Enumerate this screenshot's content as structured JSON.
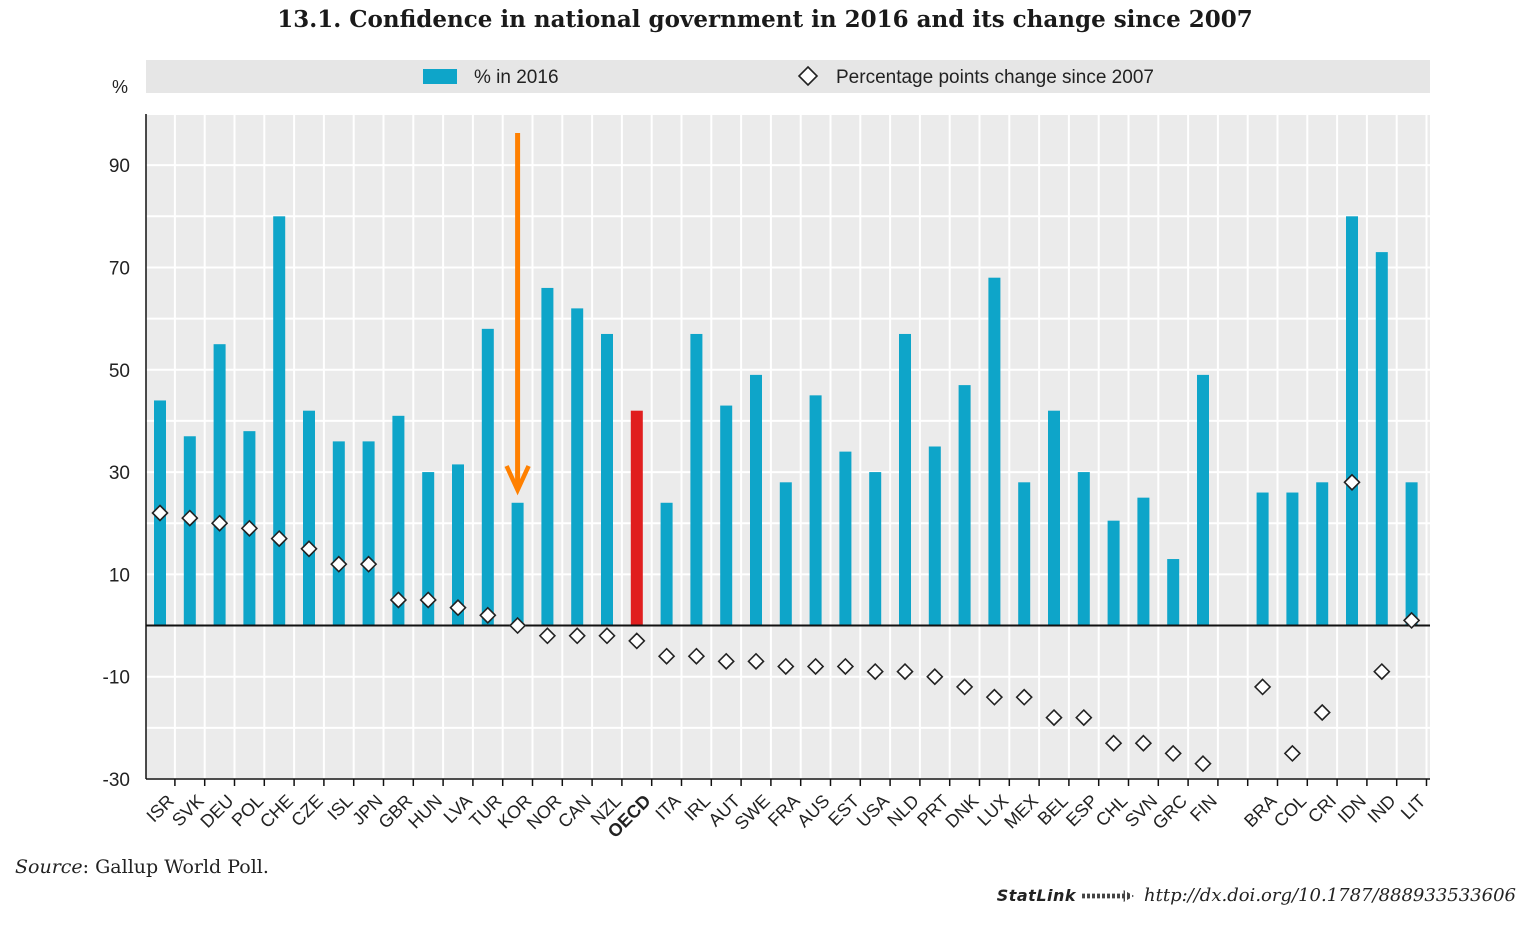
{
  "chart_data": {
    "type": "bar",
    "title": "13.1. Confidence in national government in 2016 and its change since 2007",
    "ylabel": "%",
    "ylim": [
      -30,
      100
    ],
    "yticks": [
      -30,
      -10,
      10,
      30,
      50,
      70,
      90
    ],
    "grid": true,
    "legend_position": "top",
    "categories": [
      "ISR",
      "SVK",
      "DEU",
      "POL",
      "CHE",
      "CZE",
      "ISL",
      "JPN",
      "GBR",
      "HUN",
      "LVA",
      "TUR",
      "KOR",
      "NOR",
      "CAN",
      "NZL",
      "OECD",
      "ITA",
      "IRL",
      "AUT",
      "SWE",
      "FRA",
      "AUS",
      "EST",
      "USA",
      "NLD",
      "PRT",
      "DNK",
      "LUX",
      "MEX",
      "BEL",
      "ESP",
      "CHL",
      "SVN",
      "GRC",
      "FIN",
      "BRA",
      "COL",
      "CRI",
      "IDN",
      "IND",
      "LIT"
    ],
    "highlight_category": "OECD",
    "arrow_annotation_category": "KOR",
    "series": [
      {
        "name": "% in 2016",
        "kind": "bar",
        "color": "#0ea5c9",
        "highlight_color": "#e01e1e",
        "values": [
          44,
          37,
          55,
          38,
          80,
          42,
          36,
          36,
          41,
          30,
          31.5,
          58,
          24,
          66,
          62,
          57,
          42,
          24,
          57,
          43,
          49,
          28,
          45,
          34,
          30,
          57,
          35,
          47,
          68,
          28,
          42,
          30,
          20.5,
          25,
          13,
          49,
          26,
          26,
          28,
          80,
          73,
          28
        ]
      },
      {
        "name": "Percentage points change since 2007",
        "kind": "marker",
        "marker": "diamond",
        "values": [
          22,
          21,
          20,
          19,
          17,
          15,
          12,
          12,
          5,
          5,
          3.5,
          2,
          0,
          -2,
          -2,
          -2,
          -3,
          -6,
          -6,
          -7,
          -7,
          -8,
          -8,
          -8,
          -9,
          -9,
          -10,
          -12,
          -14,
          -14,
          -18,
          -18,
          -23,
          -23,
          -25,
          -27,
          -12,
          -25,
          -17,
          28,
          -9,
          1
        ]
      }
    ]
  },
  "colors": {
    "plot_background": "#ebebeb",
    "legend_background": "#e6e6e6",
    "gridline": "#ffffff",
    "arrow": "#ff8000"
  },
  "footer": {
    "source_label": "Source",
    "source_text": ": Gallup World Poll.",
    "statlink_word": "StatLink",
    "statlink_url": "http://dx.doi.org/10.1787/888933533606"
  }
}
